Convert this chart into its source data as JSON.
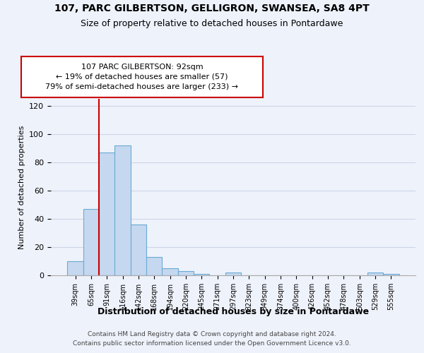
{
  "title1": "107, PARC GILBERTSON, GELLIGRON, SWANSEA, SA8 4PT",
  "title2": "Size of property relative to detached houses in Pontardawe",
  "xlabel": "Distribution of detached houses by size in Pontardawe",
  "ylabel": "Number of detached properties",
  "categories": [
    "39sqm",
    "65sqm",
    "91sqm",
    "116sqm",
    "142sqm",
    "168sqm",
    "194sqm",
    "220sqm",
    "245sqm",
    "271sqm",
    "297sqm",
    "323sqm",
    "349sqm",
    "374sqm",
    "400sqm",
    "426sqm",
    "452sqm",
    "478sqm",
    "503sqm",
    "529sqm",
    "555sqm"
  ],
  "values": [
    10,
    47,
    87,
    92,
    36,
    13,
    5,
    3,
    1,
    0,
    2,
    0,
    0,
    0,
    0,
    0,
    0,
    0,
    0,
    2,
    1
  ],
  "bar_color": "#c5d8ef",
  "bar_edge_color": "#6aaad4",
  "property_line_x": 2.0,
  "annotation_text": "107 PARC GILBERTSON: 92sqm\n← 19% of detached houses are smaller (57)\n79% of semi-detached houses are larger (233) →",
  "annotation_box_color": "white",
  "annotation_box_edge": "#cc0000",
  "red_line_color": "#cc0000",
  "ylim": [
    0,
    125
  ],
  "yticks": [
    0,
    20,
    40,
    60,
    80,
    100,
    120
  ],
  "footer1": "Contains HM Land Registry data © Crown copyright and database right 2024.",
  "footer2": "Contains public sector information licensed under the Open Government Licence v3.0.",
  "bg_color": "#eef2fb",
  "grid_color": "#cdd5e8"
}
